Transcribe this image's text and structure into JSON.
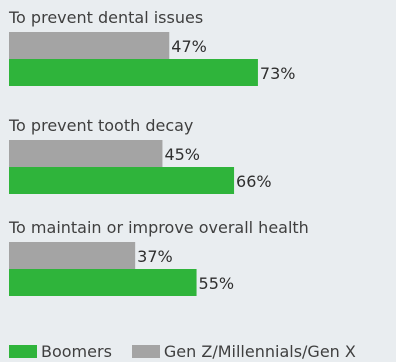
{
  "colors": {
    "background": "#e9edf0",
    "boomers": "#2fb43b",
    "genz": "#a4a4a4"
  },
  "legend": {
    "items": [
      {
        "label": "Boomers",
        "color": "#2fb43b"
      },
      {
        "label": "Gen Z/Millennials/Gen X",
        "color": "#a4a4a4"
      }
    ]
  },
  "chart_data": {
    "type": "bar",
    "orientation": "horizontal",
    "categories": [
      "To prevent dental issues",
      "To prevent tooth decay",
      "To maintain or improve overall health"
    ],
    "series": [
      {
        "name": "Gen Z/Millennials/Gen X",
        "values": [
          47,
          45,
          37
        ],
        "labels": [
          "47%",
          "45%",
          "37%"
        ],
        "color": "#a4a4a4"
      },
      {
        "name": "Boomers",
        "values": [
          73,
          66,
          55
        ],
        "labels": [
          "73%",
          "66%",
          "55%"
        ],
        "color": "#2fb43b"
      }
    ],
    "unit": "%",
    "xlim": [
      0,
      100
    ],
    "grid": false,
    "legend_position": "bottom-left"
  }
}
